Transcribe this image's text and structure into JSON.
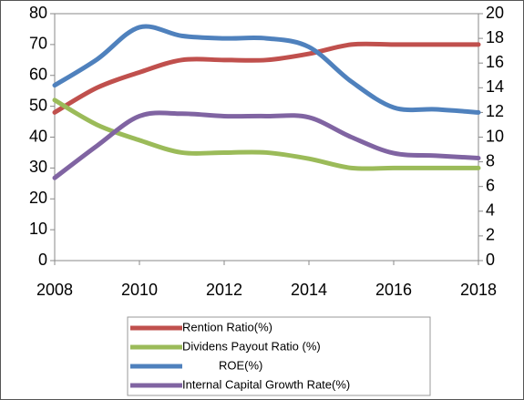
{
  "chart_data": {
    "type": "line",
    "x": [
      2008,
      2009,
      2010,
      2011,
      2012,
      2013,
      2014,
      2015,
      2016,
      2017,
      2018
    ],
    "xlim": [
      2008,
      2018
    ],
    "xticks": [
      2008,
      2010,
      2012,
      2014,
      2016,
      2018
    ],
    "ylim": [
      0,
      80
    ],
    "yticks": [
      0,
      10,
      20,
      30,
      40,
      50,
      60,
      70,
      80
    ],
    "y2lim": [
      0,
      20
    ],
    "y2ticks": [
      0,
      2,
      4,
      6,
      8,
      10,
      12,
      14,
      16,
      18,
      20
    ],
    "legend": "bottom",
    "series": [
      {
        "name": "Rention Ratio(%)",
        "color": "#c0504d",
        "values": [
          48,
          56,
          61,
          65,
          65,
          65,
          67,
          70,
          70,
          70,
          70
        ]
      },
      {
        "name": "Dividens Payout Ratio (%)",
        "color": "#9bbb59",
        "values": [
          52,
          44,
          39,
          35,
          35,
          35,
          33,
          30,
          30,
          30,
          30
        ]
      },
      {
        "name": "ROE(%)",
        "color": "#4f81bd",
        "axis": "y2",
        "values": [
          14.2,
          16.3,
          18.9,
          18.2,
          18,
          18,
          17.3,
          14.5,
          12.4,
          12.25,
          12
        ]
      },
      {
        "name": "Internal Capital Growth Rate(%)",
        "color": "#8064a2",
        "axis": "y2",
        "values": [
          6.7,
          9.3,
          11.7,
          11.9,
          11.7,
          11.7,
          11.6,
          10,
          8.7,
          8.5,
          8.3
        ]
      }
    ]
  }
}
